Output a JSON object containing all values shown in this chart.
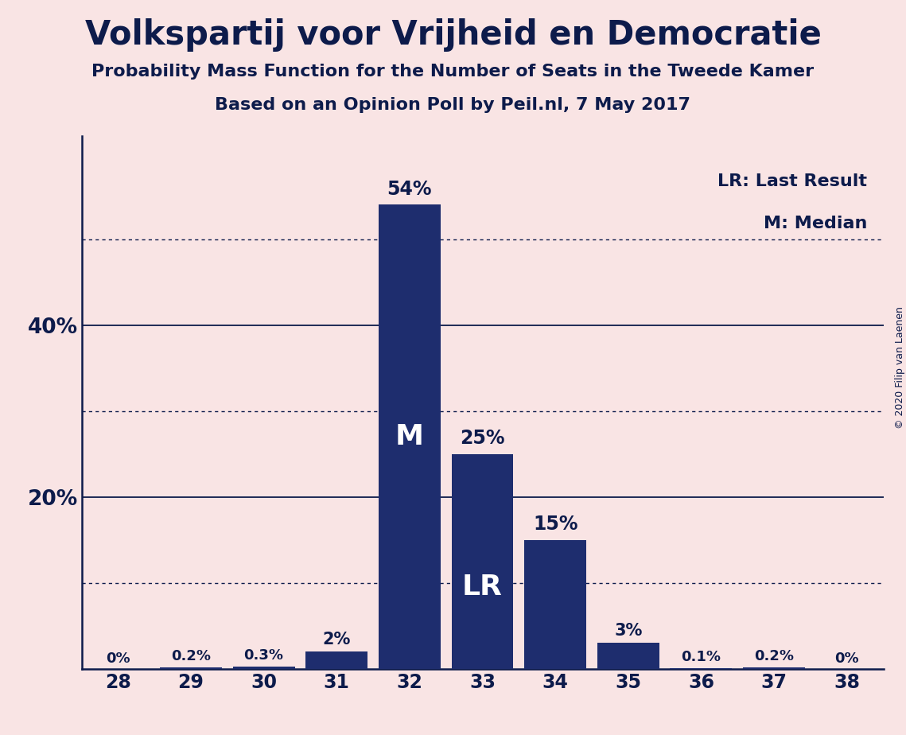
{
  "title": "Volkspartij voor Vrijheid en Democratie",
  "subtitle1": "Probability Mass Function for the Number of Seats in the Tweede Kamer",
  "subtitle2": "Based on an Opinion Poll by Peil.nl, 7 May 2017",
  "copyright": "© 2020 Filip van Laenen",
  "seats": [
    28,
    29,
    30,
    31,
    32,
    33,
    34,
    35,
    36,
    37,
    38
  ],
  "probabilities": [
    0.0,
    0.2,
    0.3,
    2.0,
    54.0,
    25.0,
    15.0,
    3.0,
    0.1,
    0.2,
    0.0
  ],
  "bar_color": "#1e2d6e",
  "background_color": "#f9e4e4",
  "bar_labels": [
    "0%",
    "0.2%",
    "0.3%",
    "2%",
    "54%",
    "25%",
    "15%",
    "3%",
    "0.1%",
    "0.2%",
    "0%"
  ],
  "median_seat": 32,
  "lr_seat": 33,
  "dotted_lines": [
    10,
    30,
    50
  ],
  "solid_lines": [
    20,
    40
  ],
  "legend_lr": "LR: Last Result",
  "legend_m": "M: Median",
  "ylim_max": 62,
  "text_color": "#0d1b4b"
}
